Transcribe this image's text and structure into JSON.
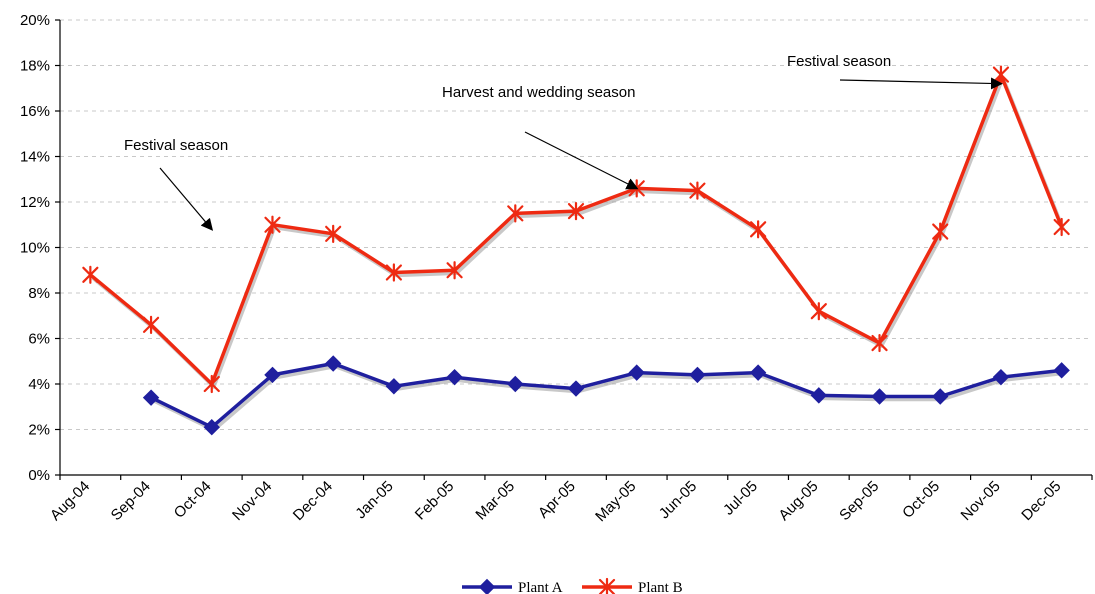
{
  "chart_data": {
    "type": "line",
    "categories": [
      "Aug-04",
      "Sep-04",
      "Oct-04",
      "Nov-04",
      "Dec-04",
      "Jan-05",
      "Feb-05",
      "Mar-05",
      "Apr-05",
      "May-05",
      "Jun-05",
      "Jul-05",
      "Aug-05",
      "Sep-05",
      "Oct-05",
      "Nov-05",
      "Dec-05"
    ],
    "y_ticks": [
      "0%",
      "2%",
      "4%",
      "6%",
      "8%",
      "10%",
      "12%",
      "14%",
      "16%",
      "18%",
      "20%"
    ],
    "ylim": [
      0,
      20
    ],
    "grid": "horizontal dashed",
    "legend": "bottom-center",
    "series": [
      {
        "name": "Plant A",
        "color": "#1f1f9e",
        "marker": "diamond",
        "points": [
          {
            "x": "Sep-04",
            "y": 3.4
          },
          {
            "x": "Oct-04",
            "y": 2.1
          },
          {
            "x": "Nov-04",
            "y": 4.4
          },
          {
            "x": "Dec-04",
            "y": 4.9
          },
          {
            "x": "Jan-05",
            "y": 3.9
          },
          {
            "x": "Feb-05",
            "y": 4.3
          },
          {
            "x": "Mar-05",
            "y": 4.0
          },
          {
            "x": "Apr-05",
            "y": 3.8
          },
          {
            "x": "May-05",
            "y": 4.5
          },
          {
            "x": "Jun-05",
            "y": 4.4
          },
          {
            "x": "Jul-05",
            "y": 4.5
          },
          {
            "x": "Aug-05",
            "y": 3.5
          },
          {
            "x": "Sep-05",
            "y": 3.45
          },
          {
            "x": "Oct-05",
            "y": 3.45
          },
          {
            "x": "Nov-05",
            "y": 4.3
          },
          {
            "x": "Dec-05",
            "y": 4.6
          }
        ]
      },
      {
        "name": "Plant B",
        "color": "#ee2a12",
        "marker": "star",
        "points": [
          {
            "x": "Aug-04",
            "y": 8.8
          },
          {
            "x": "Sep-04",
            "y": 6.6
          },
          {
            "x": "Oct-04",
            "y": 4.0
          },
          {
            "x": "Nov-04",
            "y": 11.0
          },
          {
            "x": "Dec-04",
            "y": 10.6
          },
          {
            "x": "Jan-05",
            "y": 8.9
          },
          {
            "x": "Feb-05",
            "y": 9.0
          },
          {
            "x": "Mar-05",
            "y": 11.5
          },
          {
            "x": "Apr-05",
            "y": 11.6
          },
          {
            "x": "May-05",
            "y": 12.6
          },
          {
            "x": "Jun-05",
            "y": 12.5
          },
          {
            "x": "Jul-05",
            "y": 10.8
          },
          {
            "x": "Aug-05",
            "y": 7.2
          },
          {
            "x": "Sep-05",
            "y": 5.8
          },
          {
            "x": "Oct-05",
            "y": 10.7
          },
          {
            "x": "Nov-05",
            "y": 17.6
          },
          {
            "x": "Dec-05",
            "y": 10.9
          }
        ]
      }
    ],
    "annotations": [
      {
        "text": "Festival season",
        "points_to": {
          "x": "Oct-04",
          "y": 10.8
        }
      },
      {
        "text": "Harvest and wedding season",
        "points_to": {
          "x": "May-05",
          "y": 12.6
        }
      },
      {
        "text": "Festival season",
        "points_to": {
          "x": "Nov-05",
          "y": 17.2
        }
      }
    ]
  }
}
